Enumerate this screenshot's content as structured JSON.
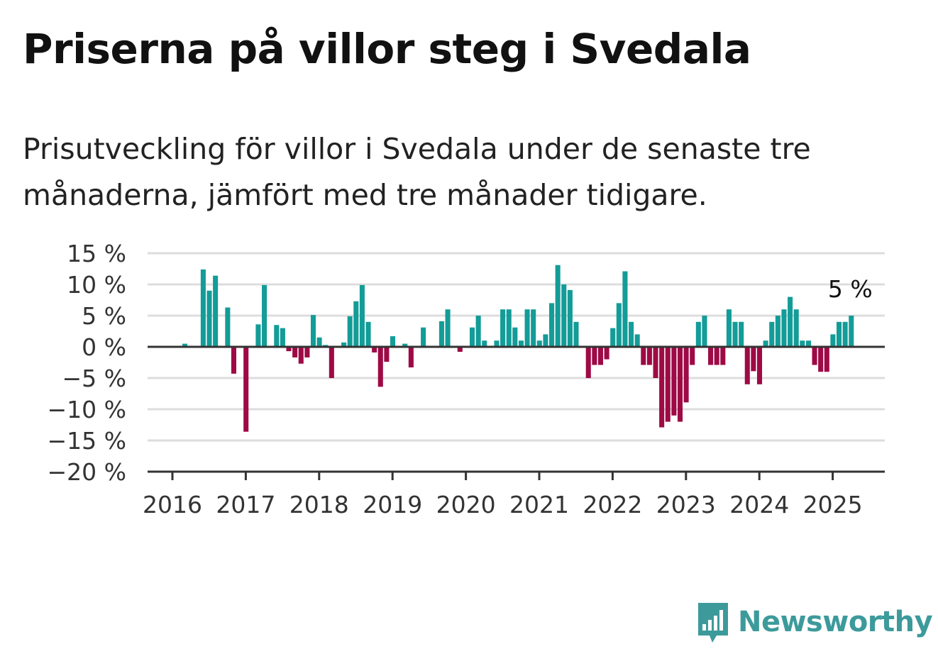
{
  "title": "Priserna på villor steg i Svedala",
  "subtitle": "Prisutveckling för villor i Svedala under de senaste tre månaderna, jämfört med tre månader tidigare.",
  "brand": {
    "name": "Newsworthy",
    "color": "#3d9a9b",
    "icon": "newsworthy-logo-icon"
  },
  "colors": {
    "positive": "#139c98",
    "negative": "#9e0a45",
    "grid": "#dddddd",
    "axis": "#333333"
  },
  "chart_data": {
    "type": "bar",
    "ylim": [
      -20,
      15
    ],
    "y_ticks": [
      15,
      10,
      5,
      0,
      -5,
      -10,
      -15,
      -20
    ],
    "y_tick_labels": [
      "15 %",
      "10 %",
      "5 %",
      "0 %",
      "−5 %",
      "−10 %",
      "−15 %",
      "−20 %"
    ],
    "x_tick_labels": [
      "2016",
      "2017",
      "2018",
      "2019",
      "2020",
      "2021",
      "2022",
      "2023",
      "2024",
      "2025"
    ],
    "start_year": 2016,
    "annotation": "5 %",
    "grid": true,
    "values": [
      0,
      0,
      0.5,
      0,
      0,
      12.4,
      9,
      11.4,
      0,
      6.3,
      -4.3,
      0,
      -13.6,
      0,
      3.6,
      9.9,
      0,
      3.5,
      3,
      -0.7,
      -1.7,
      -2.7,
      -1.7,
      5.1,
      1.5,
      0.3,
      -5,
      0,
      0.7,
      4.9,
      7.3,
      9.9,
      4,
      -0.9,
      -6.4,
      -2.4,
      1.7,
      0,
      0.5,
      -3.3,
      0,
      3.1,
      0,
      0,
      4.1,
      6,
      0,
      -0.8,
      0,
      3.1,
      5,
      1,
      0,
      1,
      6,
      6,
      3.1,
      1,
      6,
      6,
      1,
      2,
      7,
      13.1,
      10,
      9.1,
      4,
      0,
      -5,
      -2.9,
      -2.9,
      -2,
      3,
      7,
      12.1,
      4,
      2,
      -2.9,
      -2.9,
      -5,
      -12.9,
      -12,
      -11,
      -12,
      -8.9,
      -2.9,
      4,
      5,
      -2.9,
      -2.9,
      -2.9,
      6,
      4,
      4,
      -6,
      -3.9,
      -6,
      1,
      4,
      5,
      6,
      8,
      6,
      1,
      1,
      -2.9,
      -4,
      -4,
      2,
      4,
      4,
      5
    ]
  }
}
